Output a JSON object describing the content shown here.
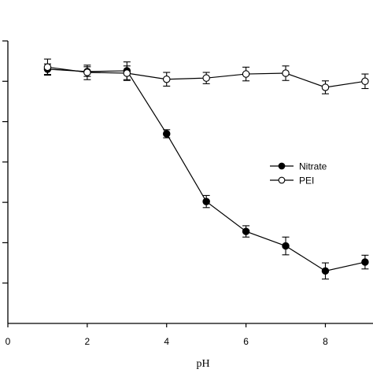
{
  "chart_data": {
    "type": "line",
    "xlabel": "pH",
    "ylabel": "",
    "xlim": [
      0,
      9.2
    ],
    "ylim": [
      0,
      7
    ],
    "x_ticks": [
      0,
      2,
      4,
      6,
      8
    ],
    "y_tick_values": [
      1,
      2,
      3,
      4,
      5,
      6,
      7
    ],
    "y_tick_labels_visible": false,
    "grid": false,
    "legend_position": "center-right",
    "series": [
      {
        "name": "Nitrate",
        "marker": "filled-circle",
        "color": "#000000",
        "x": [
          1,
          2,
          3,
          4,
          5,
          6,
          7,
          8,
          9
        ],
        "y": [
          6.3,
          6.24,
          6.26,
          4.7,
          3.02,
          2.28,
          1.92,
          1.3,
          1.52
        ],
        "err": [
          0.13,
          0.12,
          0.22,
          0.1,
          0.15,
          0.14,
          0.22,
          0.2,
          0.17
        ]
      },
      {
        "name": "PEI",
        "marker": "open-circle",
        "color": "#000000",
        "x": [
          1,
          2,
          3,
          4,
          5,
          6,
          7,
          8,
          9
        ],
        "y": [
          6.35,
          6.22,
          6.2,
          6.05,
          6.08,
          6.18,
          6.2,
          5.85,
          6.0
        ],
        "err": [
          0.2,
          0.18,
          0.18,
          0.17,
          0.14,
          0.17,
          0.18,
          0.16,
          0.18
        ]
      }
    ]
  }
}
